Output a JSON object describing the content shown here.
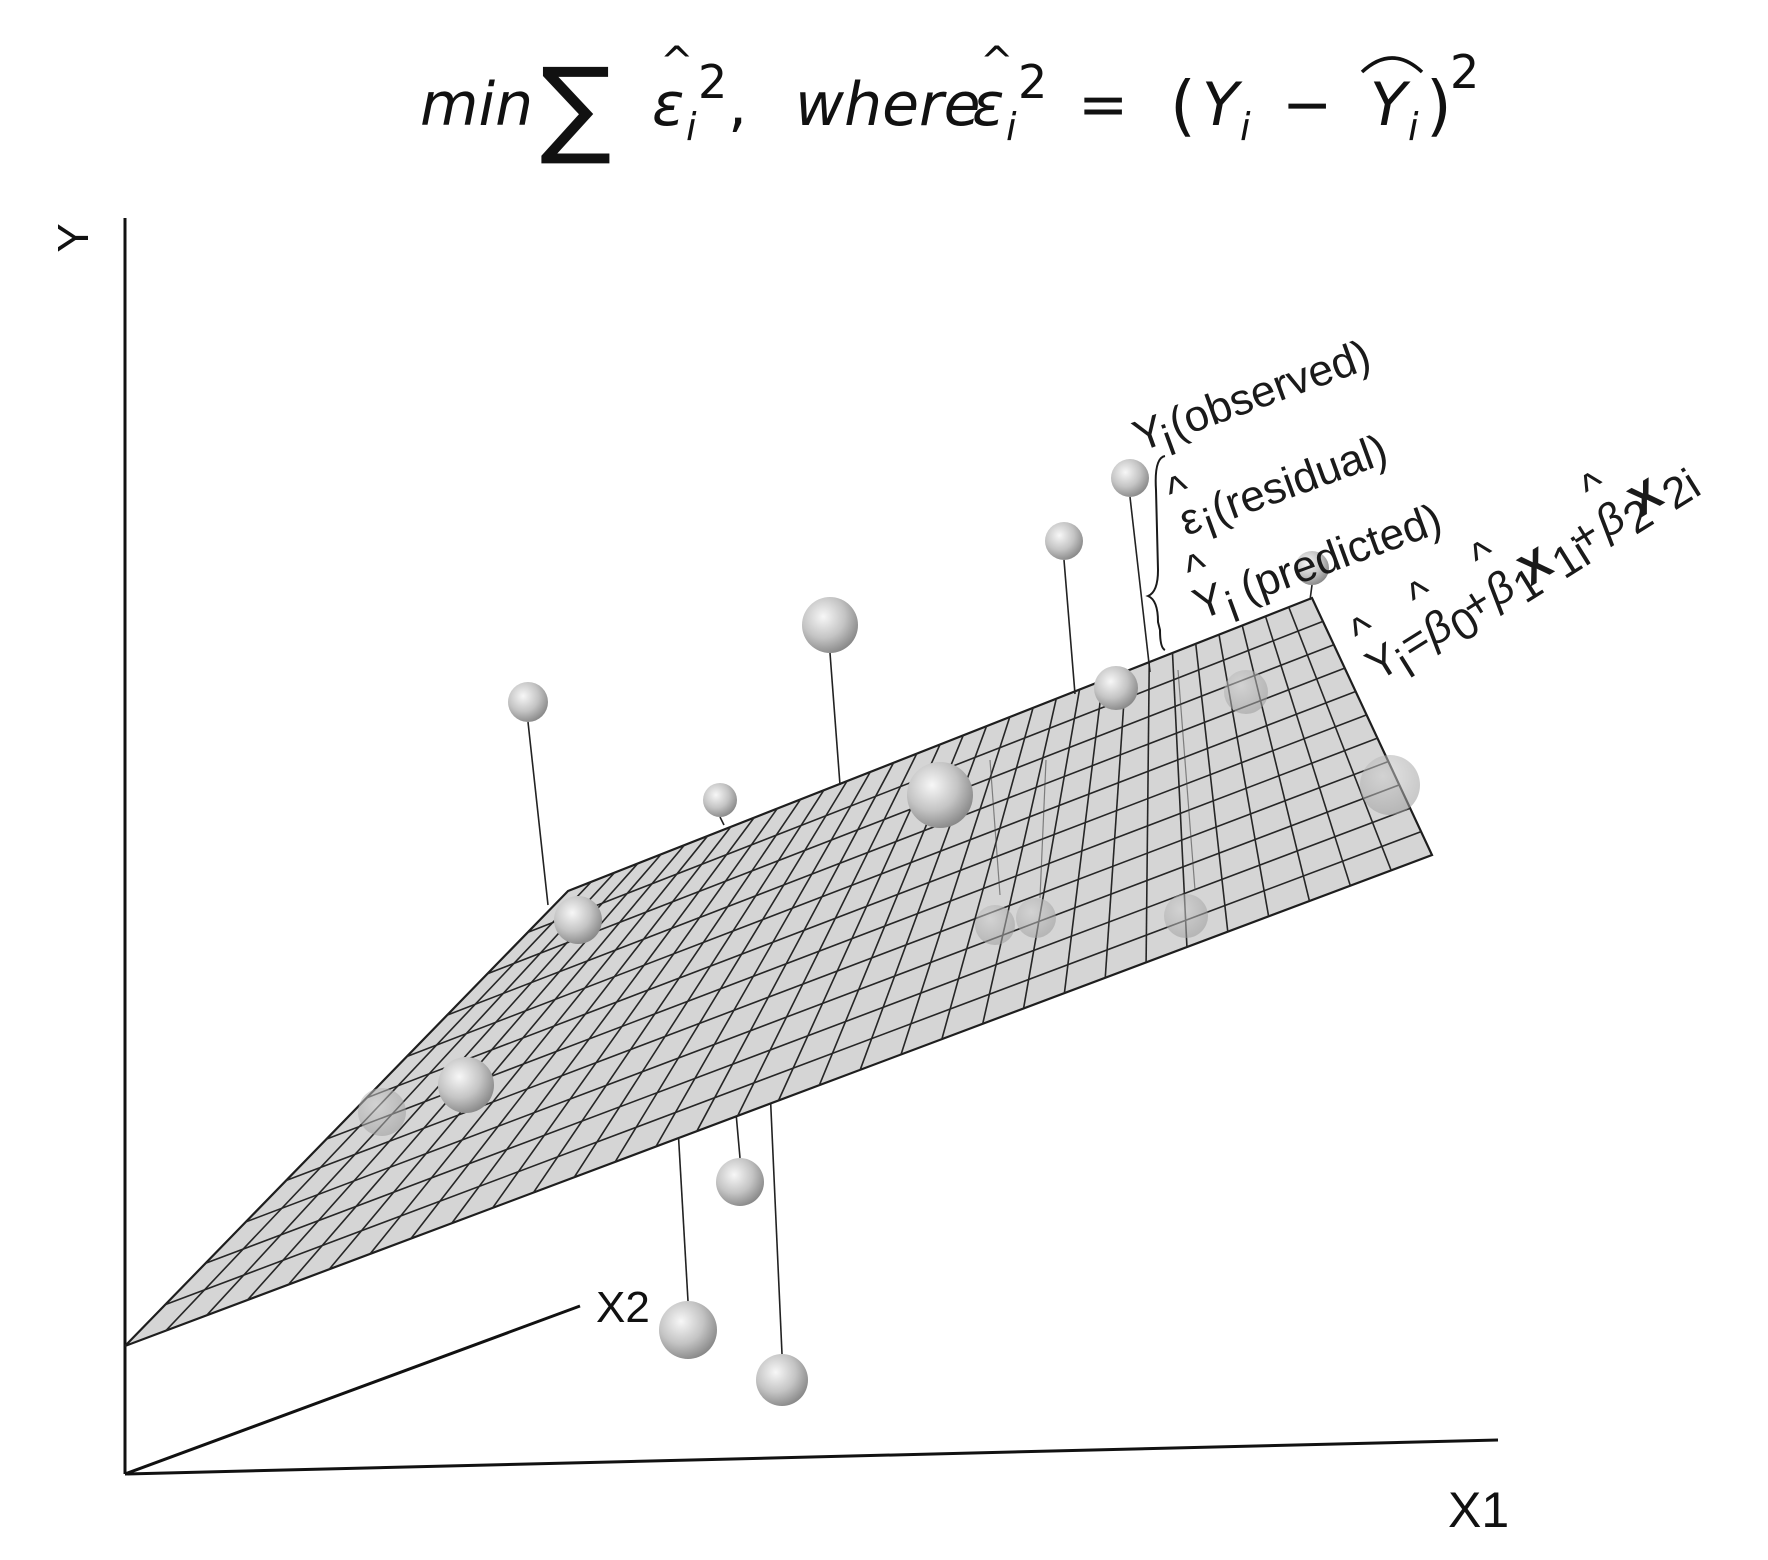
{
  "formula": {
    "min": "min",
    "sum": "∑",
    "eps": "ε",
    "hat": "^",
    "sub_i": "i",
    "sq": "2",
    "comma": ",",
    "where": "where",
    "equals": "=",
    "open": "(",
    "Y": "Y",
    "minus": "−",
    "close": ")"
  },
  "axes": {
    "y": "Y",
    "x1": "X1",
    "x2": "X2"
  },
  "annotations": {
    "observed": "Y",
    "observed_sub": "i",
    "observed_text": "(observed)",
    "residual": "ε",
    "residual_hat": "^",
    "residual_sub": "i",
    "residual_text": "(residual)",
    "predicted": "Y",
    "predicted_hat": "^",
    "predicted_sub": "i",
    "predicted_text": "(predicted)"
  },
  "equation": {
    "Y": "Y",
    "hat": "^",
    "i": "i",
    "eq": "=",
    "beta": "β",
    "b0": "0",
    "plus": "+",
    "b1": "1",
    "X": "X",
    "x1sub": "1i",
    "b2": "2",
    "x2sub": "2i"
  },
  "colors": {
    "plane": "#d7d7d7",
    "grid": "#262626",
    "sphere_light": "#f4f4f4",
    "sphere_dark": "#8a8a8a"
  },
  "observations": {
    "count": 20
  }
}
